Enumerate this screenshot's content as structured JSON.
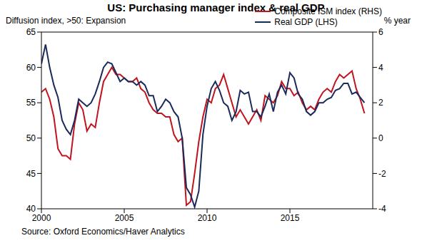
{
  "chart_data": {
    "type": "line",
    "title": "US: Purchasing manager index & real GDP",
    "source": "Source: Oxford Economics/Haver Analytics",
    "y_label": "Diffusion index, >50: Expansion",
    "y2_label": "% year",
    "x": [
      2000,
      2000.25,
      2000.5,
      2000.75,
      2001,
      2001.25,
      2001.5,
      2001.75,
      2002,
      2002.25,
      2002.5,
      2002.75,
      2003,
      2003.25,
      2003.5,
      2003.75,
      2004,
      2004.25,
      2004.5,
      2004.75,
      2005,
      2005.25,
      2005.5,
      2005.75,
      2006,
      2006.25,
      2006.5,
      2006.75,
      2007,
      2007.25,
      2007.5,
      2007.75,
      2008,
      2008.25,
      2008.5,
      2008.75,
      2009,
      2009.25,
      2009.5,
      2009.75,
      2010,
      2010.25,
      2010.5,
      2010.75,
      2011,
      2011.25,
      2011.5,
      2011.75,
      2012,
      2012.25,
      2012.5,
      2012.75,
      2013,
      2013.25,
      2013.5,
      2013.75,
      2014,
      2014.25,
      2014.5,
      2014.75,
      2015,
      2015.25,
      2015.5,
      2015.75,
      2016,
      2016.25,
      2016.5,
      2016.75,
      2017,
      2017.25,
      2017.5,
      2017.75,
      2018,
      2018.25,
      2018.5,
      2018.75,
      2019,
      2019.25,
      2019.5
    ],
    "xlim": [
      2000,
      2020
    ],
    "xticks": [
      2000,
      2005,
      2010,
      2015
    ],
    "ylim": [
      40,
      65
    ],
    "yticks": [
      40,
      45,
      50,
      55,
      60,
      65
    ],
    "y2lim": [
      -4,
      6
    ],
    "y2ticks": [
      -4,
      -2,
      0,
      2,
      4,
      6
    ],
    "legend": "top right",
    "grid": false,
    "series": [
      {
        "name": "Composite ISM index (RHS)",
        "color": "#c0141e",
        "values": [
          56.5,
          57,
          55.5,
          53,
          48.5,
          47.5,
          47.5,
          47,
          52,
          55,
          54,
          51,
          52,
          51.5,
          55,
          58,
          59,
          60,
          59,
          59,
          58.5,
          58,
          58,
          58.5,
          57,
          56.5,
          55,
          54,
          53.5,
          53.5,
          53,
          53,
          50.5,
          49.5,
          50,
          40.5,
          41,
          45,
          49.5,
          53,
          55.5,
          55,
          57,
          57.5,
          59,
          57,
          55,
          53,
          54,
          53,
          52,
          53,
          54,
          52.5,
          56,
          55.5,
          55,
          56,
          58,
          57,
          57,
          56,
          56.5,
          55,
          54,
          54.5,
          54,
          55.5,
          56.5,
          57,
          56.5,
          58,
          59,
          58.5,
          59,
          59.5,
          57,
          55.5,
          53.5
        ]
      },
      {
        "name": "Real GDP (LHS)",
        "color": "#1a2a5a",
        "axis": "y2",
        "values": [
          4.2,
          5.3,
          4.0,
          3.0,
          2.3,
          1.0,
          0.5,
          0.2,
          1.0,
          2.2,
          2.0,
          1.8,
          2.0,
          2.5,
          3.2,
          4.0,
          4.3,
          4.2,
          3.7,
          3.2,
          3.4,
          3.2,
          3.2,
          3.0,
          3.2,
          3.0,
          2.4,
          2.4,
          1.5,
          1.8,
          2.2,
          2.0,
          1.5,
          1.2,
          0,
          -2.8,
          -3.2,
          -3.9,
          -3.0,
          0.2,
          1.8,
          2.8,
          3.2,
          2.7,
          2.0,
          1.8,
          1.0,
          1.5,
          2.7,
          2.5,
          2.6,
          1.5,
          1.5,
          1.2,
          1.8,
          2.5,
          1.5,
          2.6,
          3.0,
          2.5,
          3.7,
          3.4,
          2.5,
          2.2,
          1.5,
          1.3,
          1.5,
          2.0,
          2.0,
          2.2,
          2.3,
          2.7,
          2.8,
          3.1,
          3.1,
          2.5,
          2.6,
          2.3,
          2.0
        ]
      }
    ]
  }
}
